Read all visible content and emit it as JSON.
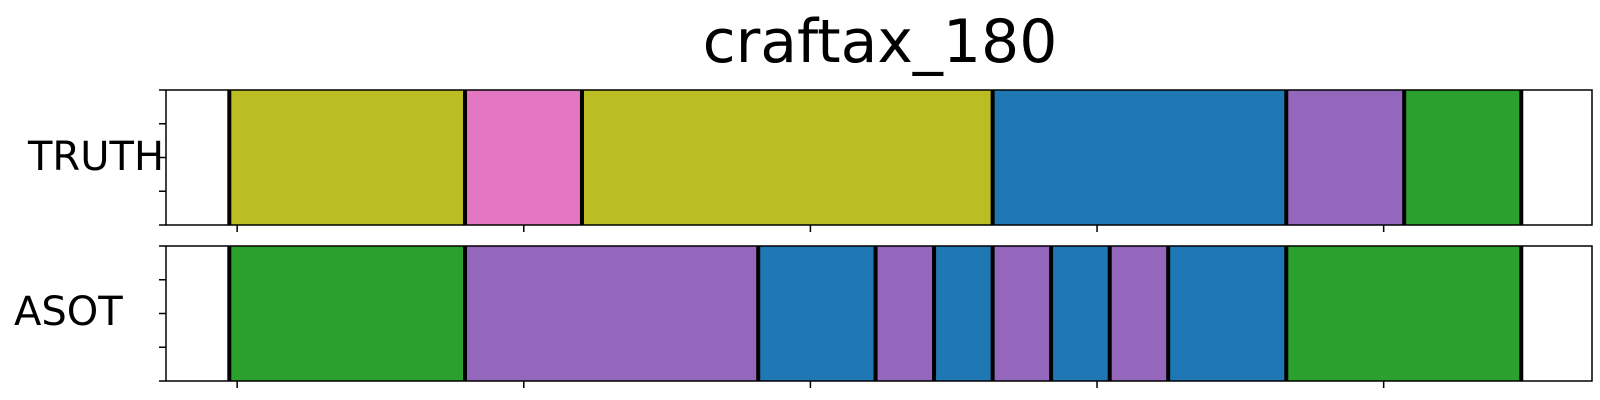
{
  "chart_data": {
    "type": "segmentation-timeline",
    "title": "craftax_180",
    "xlim": [
      0,
      1.0
    ],
    "x_ticks": [
      0.0499,
      0.2509,
      0.4519,
      0.6529,
      0.8539,
      1.0549
    ],
    "colors": {
      "olive": "#bcbd22",
      "pink": "#e377c2",
      "blue": "#1f77b4",
      "purple": "#9467bd",
      "green": "#2ca02c"
    },
    "rows": [
      {
        "label": "TRUTH",
        "segments": [
          {
            "start": 0.0,
            "end": 0.0444,
            "color": "none"
          },
          {
            "start": 0.0444,
            "end": 0.2097,
            "color": "olive"
          },
          {
            "start": 0.2097,
            "end": 0.2917,
            "color": "pink"
          },
          {
            "start": 0.2917,
            "end": 0.5797,
            "color": "olive"
          },
          {
            "start": 0.5797,
            "end": 0.7856,
            "color": "blue"
          },
          {
            "start": 0.7856,
            "end": 0.8683,
            "color": "purple"
          },
          {
            "start": 0.8683,
            "end": 0.9504,
            "color": "green"
          },
          {
            "start": 0.9504,
            "end": 1.0,
            "color": "none"
          }
        ]
      },
      {
        "label": "ASOT",
        "segments": [
          {
            "start": 0.0,
            "end": 0.0444,
            "color": "none"
          },
          {
            "start": 0.0444,
            "end": 0.2097,
            "color": "green"
          },
          {
            "start": 0.2097,
            "end": 0.4153,
            "color": "purple"
          },
          {
            "start": 0.4153,
            "end": 0.4976,
            "color": "blue"
          },
          {
            "start": 0.4976,
            "end": 0.5386,
            "color": "purple"
          },
          {
            "start": 0.5386,
            "end": 0.5797,
            "color": "blue"
          },
          {
            "start": 0.5797,
            "end": 0.6207,
            "color": "purple"
          },
          {
            "start": 0.6207,
            "end": 0.6618,
            "color": "blue"
          },
          {
            "start": 0.6618,
            "end": 0.7028,
            "color": "purple"
          },
          {
            "start": 0.7028,
            "end": 0.7856,
            "color": "blue"
          },
          {
            "start": 0.7856,
            "end": 0.9504,
            "color": "green"
          },
          {
            "start": 0.9504,
            "end": 1.0,
            "color": "none"
          }
        ]
      }
    ]
  }
}
